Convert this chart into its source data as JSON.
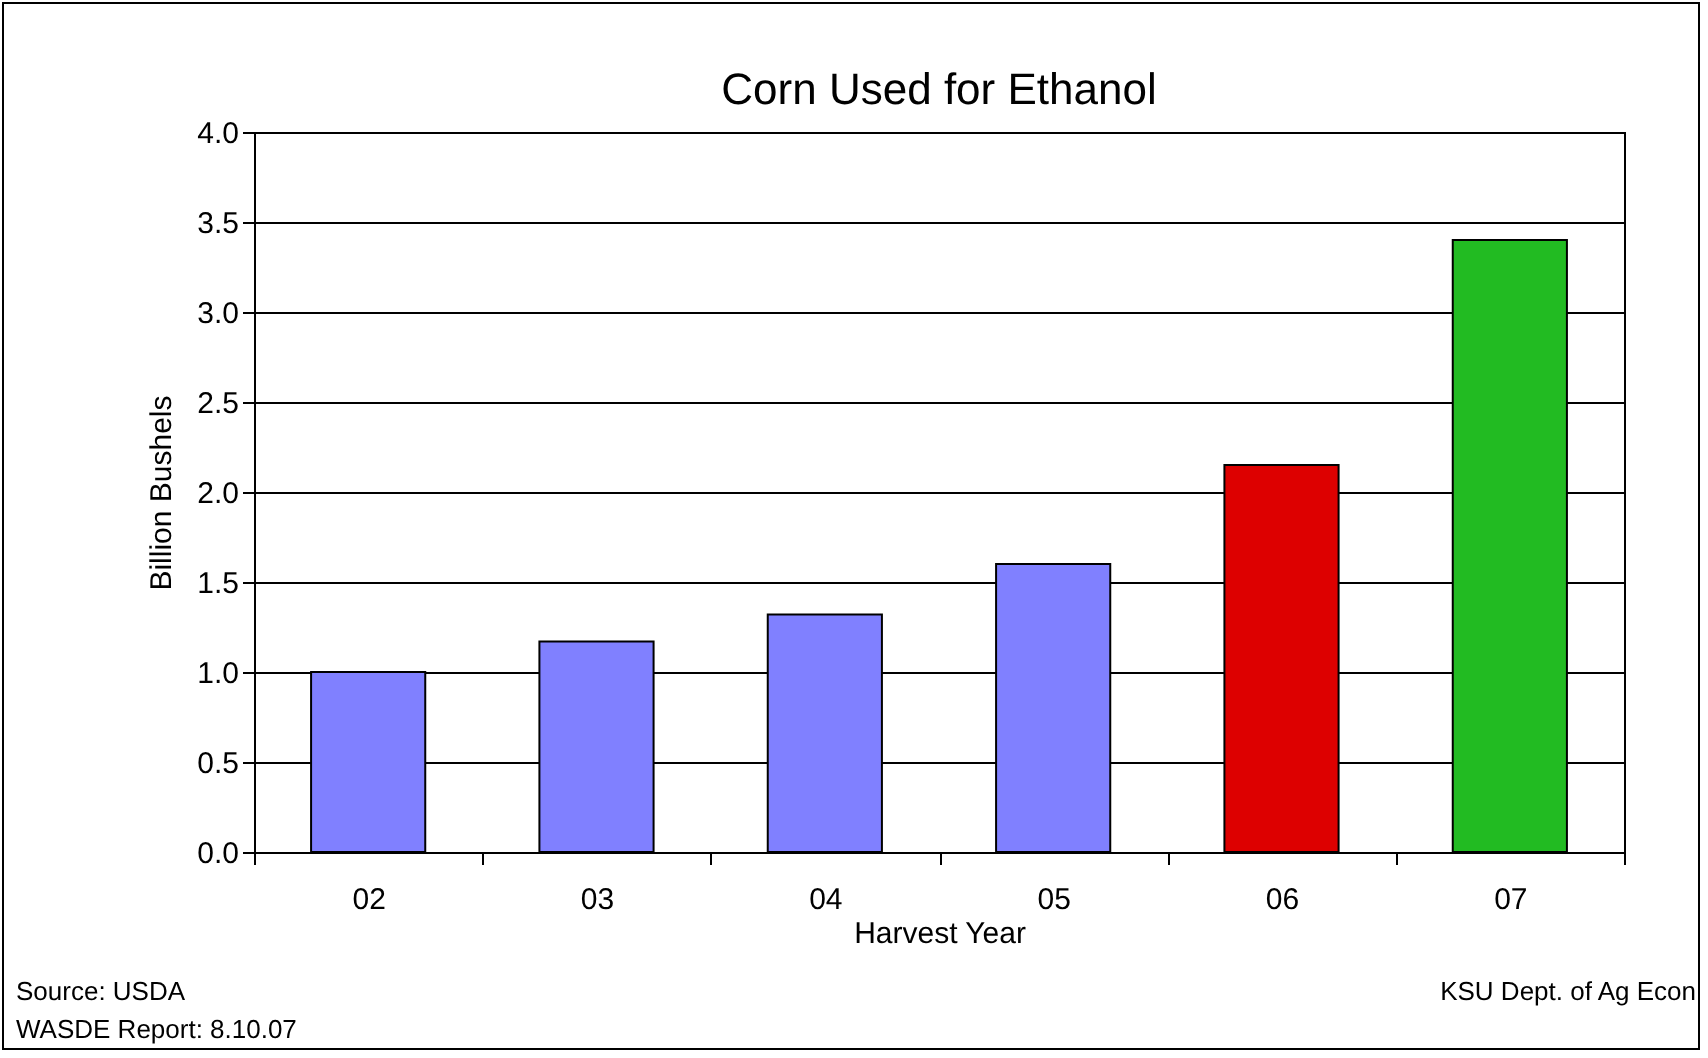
{
  "chart_data": {
    "type": "bar",
    "title": "Corn Used for Ethanol",
    "xlabel": "Harvest Year",
    "ylabel": "Billion Bushels",
    "categories": [
      "02",
      "03",
      "04",
      "05",
      "06",
      "07"
    ],
    "values": [
      1.0,
      1.17,
      1.32,
      1.6,
      2.15,
      3.4
    ],
    "colors": [
      "#8080ff",
      "#8080ff",
      "#8080ff",
      "#8080ff",
      "#dd0000",
      "#22bb22"
    ],
    "ylim": [
      0,
      4
    ],
    "yticks": [
      {
        "value": 0,
        "label": "0.0"
      },
      0.5,
      {
        "value": 1,
        "label": "1.0"
      },
      1.5,
      {
        "value": 2,
        "label": "2.0"
      },
      2.5,
      {
        "value": 3,
        "label": "3.0"
      },
      3.5,
      {
        "value": 4,
        "label": "4.0"
      }
    ],
    "grid": "y",
    "annotations": [
      "Source:  USDA",
      "WASDE Report:  8.10.07",
      "KSU Dept. of Ag Econ"
    ]
  }
}
